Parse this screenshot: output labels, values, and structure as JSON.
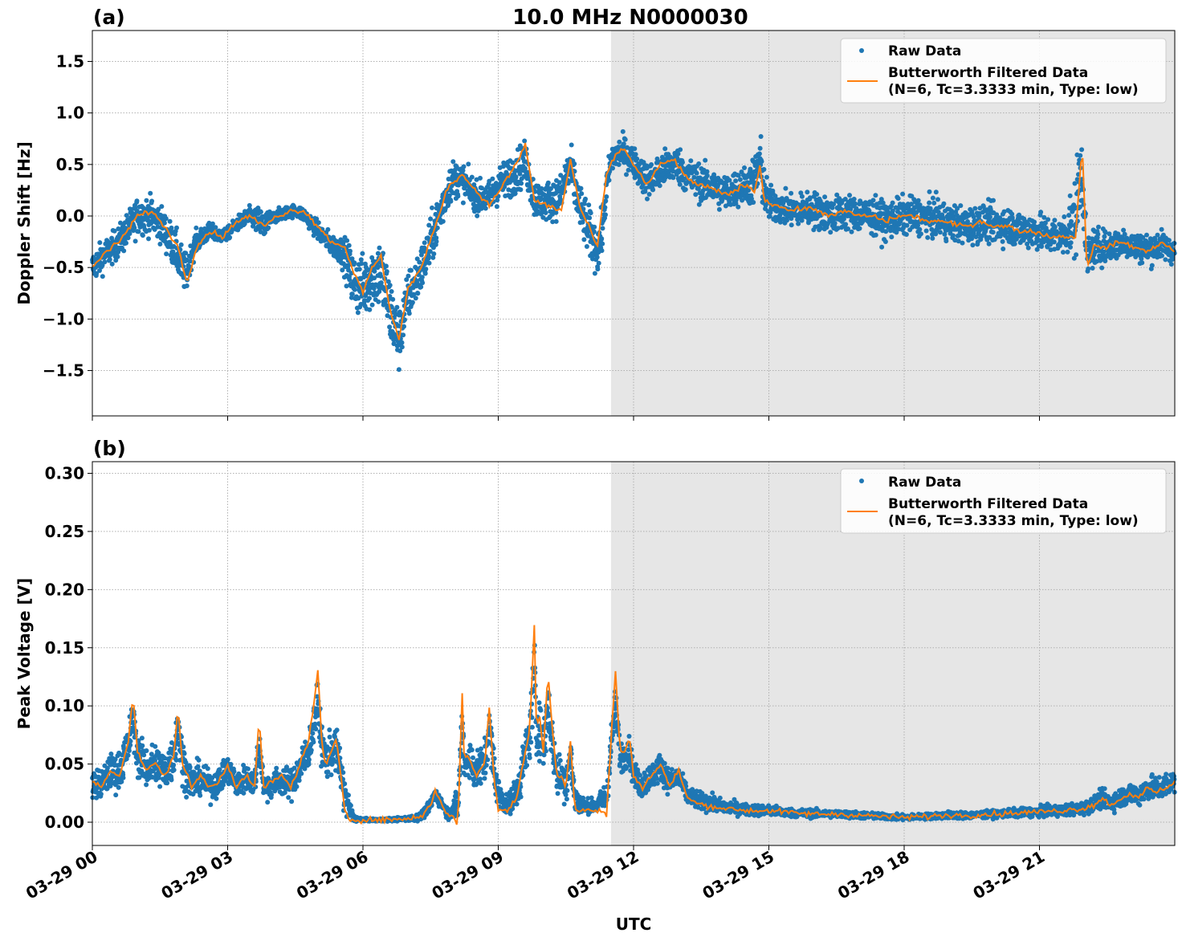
{
  "figure": {
    "suptitle": "10.0 MHz N0000030",
    "xlabel": "UTC",
    "x_tick_labels": [
      "03-29 00",
      "03-29 03",
      "03-29 06",
      "03-29 09",
      "03-29 12",
      "03-29 15",
      "03-29 18",
      "03-29 21"
    ],
    "colors": {
      "raw": "#1f77b4",
      "filtered": "#ff7f0e",
      "shade": "#e6e6e6",
      "grid": "#b0b0b0"
    },
    "shade_start_hour": 11.5
  },
  "chart_data": [
    {
      "type": "scatter",
      "panel_label": "(a)",
      "title": "10.0 MHz N0000030",
      "xlabel": "UTC",
      "ylabel": "Doppler Shift [Hz]",
      "xlim_hours": [
        0,
        24
      ],
      "ylim": [
        -1.94,
        1.8
      ],
      "y_ticks": [
        1.5,
        1.0,
        0.5,
        0.0,
        -0.5,
        -1.0,
        -1.5
      ],
      "y_tick_labels": [
        "1.5",
        "1.0",
        "0.5",
        "0.0",
        "−1.0",
        "−1.5"
      ],
      "y_tick_labels_full": [
        "1.5",
        "1.0",
        "0.5",
        "0.0",
        "−0.5",
        "−1.0",
        "−1.5"
      ],
      "grid": true,
      "legend": {
        "position": "top-right",
        "entries": [
          "Raw Data",
          "Butterworth Filtered Data",
          "(N=6, Tc=3.3333 min, Type: low)"
        ]
      },
      "series": [
        {
          "name": "Raw Data",
          "kind": "points",
          "x_hours": [
            0.0,
            0.5,
            1.0,
            1.5,
            2.0,
            2.2,
            2.5,
            3.0,
            3.5,
            3.8,
            4.0,
            4.5,
            5.0,
            5.5,
            5.8,
            6.0,
            6.5,
            6.8,
            7.0,
            7.5,
            8.0,
            8.5,
            9.0,
            9.5,
            10.0,
            10.5,
            11.0,
            11.3,
            11.5,
            12.0,
            12.5,
            13.0,
            13.5,
            14.0,
            14.5,
            14.8,
            15.0,
            15.5,
            16.0,
            16.5,
            17.0,
            17.5,
            18.0,
            18.5,
            19.0,
            19.5,
            20.0,
            20.5,
            21.0,
            21.5,
            21.9,
            22.0,
            22.5,
            23.0,
            23.5,
            24.0
          ],
          "y": [
            -0.5,
            -0.3,
            0.0,
            -0.1,
            -0.6,
            -0.2,
            -0.15,
            -0.2,
            0.0,
            -0.1,
            0.0,
            0.05,
            -0.2,
            -0.4,
            -0.8,
            -0.6,
            -0.8,
            -1.2,
            -0.9,
            -0.3,
            0.4,
            0.1,
            0.4,
            0.3,
            0.15,
            0.5,
            -0.2,
            -0.5,
            0.6,
            0.55,
            0.3,
            0.5,
            0.35,
            0.25,
            0.3,
            0.6,
            0.1,
            0.05,
            0.05,
            0.0,
            0.05,
            -0.05,
            0.0,
            0.05,
            -0.05,
            -0.1,
            -0.05,
            -0.1,
            -0.15,
            -0.2,
            0.4,
            -0.3,
            -0.3,
            -0.25,
            -0.3,
            -0.35
          ],
          "spread": [
            0.25,
            0.25,
            0.3,
            0.3,
            0.35,
            0.2,
            0.15,
            0.1,
            0.15,
            0.3,
            0.1,
            0.1,
            0.15,
            0.2,
            0.5,
            0.5,
            0.6,
            0.5,
            0.4,
            0.4,
            0.3,
            0.25,
            0.3,
            0.35,
            0.3,
            0.35,
            0.4,
            0.35,
            0.25,
            0.25,
            0.3,
            0.3,
            0.3,
            0.3,
            0.3,
            0.5,
            0.3,
            0.25,
            0.3,
            0.3,
            0.3,
            0.3,
            0.3,
            0.3,
            0.3,
            0.3,
            0.3,
            0.3,
            0.3,
            0.3,
            0.8,
            0.35,
            0.25,
            0.25,
            0.25,
            0.2
          ]
        },
        {
          "name": "Butterworth Filtered Data",
          "kind": "line",
          "x_hours": [
            0.0,
            0.3,
            0.6,
            1.0,
            1.3,
            1.6,
            1.9,
            2.1,
            2.3,
            2.6,
            2.9,
            3.2,
            3.5,
            3.8,
            4.1,
            4.4,
            4.7,
            5.0,
            5.3,
            5.6,
            5.8,
            6.0,
            6.2,
            6.4,
            6.6,
            6.8,
            7.0,
            7.3,
            7.6,
            7.9,
            8.2,
            8.5,
            8.8,
            9.1,
            9.4,
            9.6,
            9.8,
            10.1,
            10.4,
            10.6,
            10.8,
            11.0,
            11.2,
            11.4,
            11.6,
            11.8,
            12.0,
            12.3,
            12.6,
            12.9,
            13.2,
            13.5,
            13.8,
            14.1,
            14.4,
            14.7,
            14.8,
            14.9,
            15.2,
            15.5,
            15.8,
            16.1,
            16.4,
            16.7,
            17.0,
            17.3,
            17.6,
            17.9,
            18.2,
            18.5,
            18.8,
            19.1,
            19.4,
            19.7,
            20.0,
            20.3,
            20.6,
            20.9,
            21.2,
            21.5,
            21.8,
            21.95,
            22.05,
            22.2,
            22.5,
            22.8,
            23.1,
            23.4,
            23.7,
            24.0
          ],
          "y": [
            -0.5,
            -0.35,
            -0.25,
            0.0,
            0.05,
            -0.1,
            -0.3,
            -0.65,
            -0.3,
            -0.15,
            -0.2,
            -0.05,
            0.0,
            -0.1,
            0.0,
            0.05,
            0.05,
            -0.1,
            -0.25,
            -0.3,
            -0.55,
            -0.75,
            -0.5,
            -0.4,
            -0.9,
            -1.2,
            -0.7,
            -0.5,
            -0.1,
            0.3,
            0.4,
            0.25,
            0.1,
            0.3,
            0.5,
            0.7,
            0.15,
            0.1,
            0.05,
            0.55,
            0.1,
            -0.1,
            -0.3,
            0.4,
            0.6,
            0.65,
            0.5,
            0.3,
            0.5,
            0.55,
            0.35,
            0.3,
            0.25,
            0.2,
            0.3,
            0.25,
            0.5,
            0.15,
            0.1,
            0.05,
            0.08,
            0.05,
            0.0,
            0.05,
            0.0,
            0.0,
            -0.05,
            0.0,
            0.0,
            -0.05,
            -0.05,
            -0.08,
            -0.1,
            -0.05,
            -0.1,
            -0.1,
            -0.15,
            -0.15,
            -0.2,
            -0.2,
            -0.2,
            0.7,
            -0.5,
            -0.3,
            -0.3,
            -0.25,
            -0.3,
            -0.35,
            -0.25,
            -0.35
          ]
        }
      ]
    },
    {
      "type": "scatter",
      "panel_label": "(b)",
      "xlabel": "UTC",
      "ylabel": "Peak Voltage [V]",
      "xlim_hours": [
        0,
        24
      ],
      "ylim": [
        -0.02,
        0.31
      ],
      "y_ticks": [
        0.3,
        0.25,
        0.2,
        0.15,
        0.1,
        0.05,
        0.0
      ],
      "y_tick_labels": [
        "0.30",
        "0.25",
        "0.20",
        "0.15",
        "0.10",
        "0.05",
        "0.00"
      ],
      "grid": true,
      "legend": {
        "position": "top-right",
        "entries": [
          "Raw Data",
          "Butterworth Filtered Data",
          "(N=6, Tc=3.3333 min, Type: low)"
        ]
      },
      "series": [
        {
          "name": "Raw Data",
          "kind": "points",
          "x_hours": [
            0.0,
            0.4,
            0.8,
            1.2,
            1.6,
            1.9,
            2.2,
            2.6,
            3.0,
            3.3,
            3.6,
            3.9,
            4.2,
            4.6,
            5.0,
            5.3,
            5.6,
            5.8,
            6.0,
            6.5,
            7.0,
            7.3,
            7.6,
            7.9,
            8.2,
            8.5,
            8.9,
            9.2,
            9.5,
            9.7,
            9.9,
            10.1,
            10.3,
            10.6,
            10.9,
            11.2,
            11.5,
            11.8,
            12.1,
            12.4,
            12.7,
            13.0,
            13.3,
            13.7,
            14.0,
            14.5,
            15.0,
            15.5,
            16.0,
            16.5,
            17.0,
            17.5,
            18.0,
            18.5,
            19.0,
            19.5,
            20.0,
            20.5,
            21.0,
            21.5,
            22.0,
            22.3,
            22.6,
            23.0,
            23.4,
            23.7,
            24.0
          ],
          "y": [
            0.03,
            0.04,
            0.06,
            0.05,
            0.05,
            0.06,
            0.04,
            0.03,
            0.04,
            0.035,
            0.04,
            0.03,
            0.03,
            0.04,
            0.06,
            0.06,
            0.04,
            0.005,
            0.002,
            0.002,
            0.003,
            0.005,
            0.02,
            0.01,
            0.05,
            0.05,
            0.06,
            0.02,
            0.04,
            0.07,
            0.08,
            0.06,
            0.04,
            0.04,
            0.02,
            0.02,
            0.06,
            0.05,
            0.035,
            0.04,
            0.045,
            0.03,
            0.025,
            0.02,
            0.015,
            0.012,
            0.01,
            0.008,
            0.008,
            0.007,
            0.006,
            0.005,
            0.004,
            0.005,
            0.006,
            0.006,
            0.007,
            0.008,
            0.009,
            0.01,
            0.012,
            0.02,
            0.02,
            0.025,
            0.03,
            0.035,
            0.035
          ],
          "spread": [
            0.02,
            0.025,
            0.03,
            0.03,
            0.03,
            0.035,
            0.025,
            0.02,
            0.02,
            0.02,
            0.02,
            0.02,
            0.02,
            0.025,
            0.03,
            0.03,
            0.03,
            0.005,
            0.002,
            0.002,
            0.003,
            0.006,
            0.01,
            0.008,
            0.03,
            0.03,
            0.03,
            0.012,
            0.03,
            0.04,
            0.05,
            0.04,
            0.03,
            0.03,
            0.01,
            0.01,
            0.03,
            0.02,
            0.02,
            0.02,
            0.02,
            0.015,
            0.013,
            0.012,
            0.01,
            0.008,
            0.008,
            0.006,
            0.006,
            0.005,
            0.005,
            0.004,
            0.004,
            0.004,
            0.005,
            0.005,
            0.005,
            0.006,
            0.007,
            0.008,
            0.009,
            0.012,
            0.013,
            0.015,
            0.017,
            0.018,
            0.018
          ]
        },
        {
          "name": "Butterworth Filtered Data",
          "kind": "line",
          "x_hours": [
            0.0,
            0.2,
            0.4,
            0.6,
            0.8,
            0.9,
            1.0,
            1.2,
            1.4,
            1.6,
            1.8,
            1.9,
            2.0,
            2.2,
            2.4,
            2.6,
            2.8,
            3.0,
            3.2,
            3.4,
            3.6,
            3.7,
            3.8,
            4.0,
            4.2,
            4.4,
            4.6,
            4.8,
            5.0,
            5.1,
            5.2,
            5.4,
            5.5,
            5.6,
            5.7,
            5.8,
            6.0,
            6.5,
            7.0,
            7.3,
            7.5,
            7.6,
            7.7,
            7.9,
            8.0,
            8.1,
            8.2,
            8.25,
            8.3,
            8.4,
            8.5,
            8.7,
            8.8,
            8.9,
            9.0,
            9.2,
            9.4,
            9.6,
            9.7,
            9.8,
            9.85,
            9.9,
            10.0,
            10.1,
            10.2,
            10.3,
            10.4,
            10.5,
            10.6,
            10.7,
            10.8,
            11.0,
            11.2,
            11.3,
            11.4,
            11.5,
            11.6,
            11.7,
            11.8,
            11.9,
            12.0,
            12.2,
            12.4,
            12.6,
            12.8,
            13.0,
            13.2,
            13.5,
            14.0,
            14.5,
            15.0,
            15.5,
            16.0,
            16.5,
            17.0,
            17.5,
            18.0,
            18.5,
            19.0,
            19.5,
            20.0,
            20.5,
            21.0,
            21.5,
            22.0,
            22.2,
            22.4,
            22.6,
            22.8,
            23.0,
            23.2,
            23.4,
            23.6,
            23.8,
            24.0
          ],
          "y": [
            0.035,
            0.03,
            0.045,
            0.04,
            0.07,
            0.11,
            0.06,
            0.045,
            0.05,
            0.04,
            0.055,
            0.1,
            0.05,
            0.03,
            0.04,
            0.03,
            0.035,
            0.05,
            0.03,
            0.04,
            0.03,
            0.09,
            0.03,
            0.035,
            0.04,
            0.03,
            0.05,
            0.07,
            0.13,
            0.06,
            0.05,
            0.07,
            0.045,
            0.01,
            0.003,
            0.002,
            0.002,
            0.002,
            0.003,
            0.005,
            0.015,
            0.027,
            0.02,
            0.005,
            0.005,
            -0.006,
            0.11,
            0.05,
            0.06,
            0.05,
            0.04,
            0.05,
            0.1,
            0.04,
            0.01,
            0.01,
            0.02,
            0.06,
            0.08,
            0.17,
            0.07,
            0.1,
            0.06,
            0.13,
            0.08,
            0.04,
            0.04,
            0.03,
            0.07,
            0.01,
            0.01,
            0.01,
            0.01,
            0.01,
            0.005,
            0.07,
            0.13,
            0.06,
            0.06,
            0.075,
            0.04,
            0.03,
            0.04,
            0.05,
            0.03,
            0.045,
            0.02,
            0.015,
            0.012,
            0.01,
            0.01,
            0.008,
            0.007,
            0.007,
            0.006,
            0.005,
            0.004,
            0.005,
            0.006,
            0.006,
            0.007,
            0.008,
            0.009,
            0.01,
            0.012,
            0.015,
            0.02,
            0.015,
            0.02,
            0.025,
            0.02,
            0.03,
            0.025,
            0.03,
            0.035
          ]
        }
      ]
    }
  ]
}
